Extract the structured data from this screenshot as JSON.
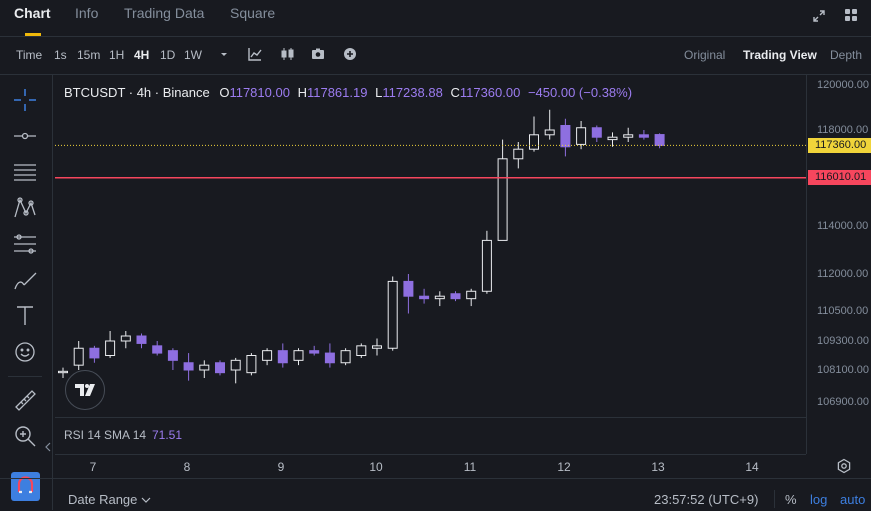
{
  "tabs": [
    {
      "label": "Chart"
    },
    {
      "label": "Info"
    },
    {
      "label": "Trading Data"
    },
    {
      "label": "Square"
    }
  ],
  "toolbar": {
    "time_label": "Time",
    "intervals": [
      "1s",
      "15m",
      "1H",
      "4H",
      "1D",
      "1W"
    ],
    "active_interval": "4H",
    "views": [
      "Original",
      "Trading View",
      "Depth"
    ],
    "active_view": "Trading View"
  },
  "legend": {
    "symbol": "BTCUSDT · 4h · Binance",
    "o_label": "O",
    "o": "117810.00",
    "h_label": "H",
    "h": "117861.19",
    "l_label": "L",
    "l": "117238.88",
    "c_label": "C",
    "c": "117360.00",
    "change": "−450.00 (−0.38%)"
  },
  "price_axis": {
    "ticks": [
      "120000.00",
      "118000.00",
      "116000.00",
      "114000.00",
      "112000.00",
      "110500.00",
      "109300.00",
      "108100.00",
      "106900.00"
    ],
    "last_price_badge": "117360.00",
    "line_badge": "116010.01"
  },
  "time_axis": {
    "labels": [
      "7",
      "8",
      "9",
      "10",
      "11",
      "12",
      "13",
      "14"
    ]
  },
  "rsi": {
    "label": "RSI 14 SMA 14",
    "value": "71.51"
  },
  "bottom": {
    "date_range": "Date Range",
    "clock": "23:57:52 (UTC+9)",
    "percent": "%",
    "log": "log",
    "auto": "auto"
  },
  "colors": {
    "up": "#eaecef",
    "down": "#8e6fe0",
    "accent": "#f0b90b",
    "line": "#f6465d"
  },
  "chart_data": {
    "type": "candlestick",
    "symbol": "BTCUSDT",
    "interval": "4h",
    "x_ticks": [
      "7",
      "8",
      "9",
      "10",
      "11",
      "12",
      "13",
      "14"
    ],
    "y_ticks": [
      120000,
      118000,
      116000,
      114000,
      112000,
      110500,
      109300,
      108100,
      106900
    ],
    "horizontal_line": 116010.01,
    "last_price": 117360,
    "candles": [
      {
        "o": 108000,
        "h": 108200,
        "l": 107800,
        "c": 108050
      },
      {
        "o": 108300,
        "h": 109300,
        "l": 108100,
        "c": 109000
      },
      {
        "o": 109000,
        "h": 109100,
        "l": 108400,
        "c": 108600
      },
      {
        "o": 108700,
        "h": 109700,
        "l": 108600,
        "c": 109300
      },
      {
        "o": 109300,
        "h": 109700,
        "l": 109000,
        "c": 109500
      },
      {
        "o": 109500,
        "h": 109600,
        "l": 109000,
        "c": 109200
      },
      {
        "o": 109100,
        "h": 109300,
        "l": 108700,
        "c": 108800
      },
      {
        "o": 108900,
        "h": 109000,
        "l": 108100,
        "c": 108500
      },
      {
        "o": 108400,
        "h": 108800,
        "l": 107700,
        "c": 108100
      },
      {
        "o": 108100,
        "h": 108500,
        "l": 107800,
        "c": 108300
      },
      {
        "o": 108400,
        "h": 108500,
        "l": 107900,
        "c": 108000
      },
      {
        "o": 108100,
        "h": 108600,
        "l": 107600,
        "c": 108500
      },
      {
        "o": 108000,
        "h": 108800,
        "l": 107900,
        "c": 108700
      },
      {
        "o": 108500,
        "h": 109000,
        "l": 108300,
        "c": 108900
      },
      {
        "o": 108900,
        "h": 109200,
        "l": 108200,
        "c": 108400
      },
      {
        "o": 108500,
        "h": 109000,
        "l": 108300,
        "c": 108900
      },
      {
        "o": 108900,
        "h": 109100,
        "l": 108700,
        "c": 108800
      },
      {
        "o": 108800,
        "h": 109200,
        "l": 108200,
        "c": 108400
      },
      {
        "o": 108400,
        "h": 109000,
        "l": 108300,
        "c": 108900
      },
      {
        "o": 108700,
        "h": 109200,
        "l": 108600,
        "c": 109100
      },
      {
        "o": 109000,
        "h": 109400,
        "l": 108700,
        "c": 109100
      },
      {
        "o": 109000,
        "h": 111900,
        "l": 108900,
        "c": 111700
      },
      {
        "o": 111700,
        "h": 112000,
        "l": 110400,
        "c": 111100
      },
      {
        "o": 111100,
        "h": 111400,
        "l": 110800,
        "c": 111000
      },
      {
        "o": 111000,
        "h": 111300,
        "l": 110700,
        "c": 111100
      },
      {
        "o": 111200,
        "h": 111300,
        "l": 110900,
        "c": 111000
      },
      {
        "o": 111000,
        "h": 111400,
        "l": 110700,
        "c": 111300
      },
      {
        "o": 111300,
        "h": 113800,
        "l": 111200,
        "c": 113400
      },
      {
        "o": 113400,
        "h": 117600,
        "l": 113400,
        "c": 116800
      },
      {
        "o": 116800,
        "h": 117500,
        "l": 116400,
        "c": 117200
      },
      {
        "o": 117200,
        "h": 118600,
        "l": 117100,
        "c": 117800
      },
      {
        "o": 117800,
        "h": 118900,
        "l": 117600,
        "c": 118000
      },
      {
        "o": 118200,
        "h": 118500,
        "l": 116900,
        "c": 117300
      },
      {
        "o": 117400,
        "h": 118400,
        "l": 117200,
        "c": 118100
      },
      {
        "o": 118100,
        "h": 118200,
        "l": 117500,
        "c": 117700
      },
      {
        "o": 117600,
        "h": 117900,
        "l": 117300,
        "c": 117700
      },
      {
        "o": 117700,
        "h": 118100,
        "l": 117500,
        "c": 117800
      },
      {
        "o": 117800,
        "h": 118000,
        "l": 117600,
        "c": 117700
      },
      {
        "o": 117810,
        "h": 117861.19,
        "l": 117238.88,
        "c": 117360
      }
    ]
  }
}
